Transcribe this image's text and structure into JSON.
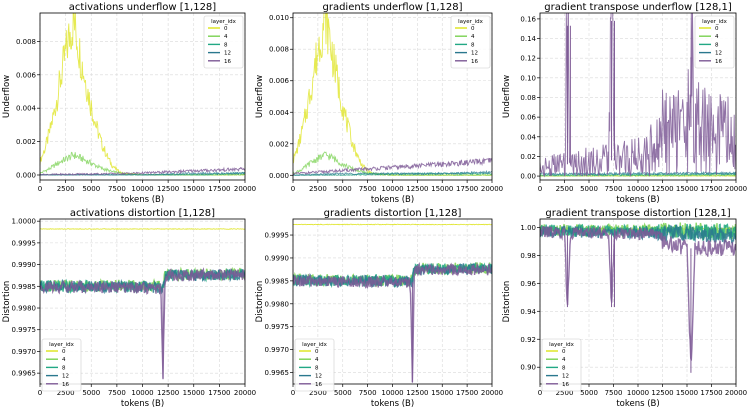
{
  "chart_data": [
    {
      "type": "line",
      "title": "activations underflow [1,128]",
      "xlabel": "tokens (B)",
      "ylabel": "Underflow",
      "xlim": [
        0,
        20000
      ],
      "ylim": [
        -0.0003,
        0.0097
      ],
      "xticks": [
        "0",
        "2500",
        "5000",
        "7500",
        "10000",
        "12500",
        "15000",
        "17500",
        "20000"
      ],
      "xtick_values": [
        0,
        2500,
        5000,
        7500,
        10000,
        12500,
        15000,
        17500,
        20000
      ],
      "yticks": [
        "0.000",
        "0.002",
        "0.004",
        "0.006",
        "0.008"
      ],
      "ytick_values": [
        0,
        0.002,
        0.004,
        0.006,
        0.008
      ],
      "grid": true,
      "legend": {
        "title": "layer_idx",
        "position": "top-right"
      },
      "series": [
        {
          "name": "0",
          "color": "#dde318",
          "x": [
            0,
            500,
            1000,
            1500,
            2000,
            2500,
            3000,
            3300,
            3600,
            4000,
            4500,
            5000,
            5500,
            6000,
            6500,
            7000,
            7500,
            8000,
            10000,
            12500,
            15000,
            17500,
            20000
          ],
          "values": [
            0.0008,
            0.0016,
            0.0027,
            0.0041,
            0.0057,
            0.0073,
            0.0087,
            0.0092,
            0.0083,
            0.0069,
            0.0055,
            0.0041,
            0.0029,
            0.0019,
            0.0012,
            0.0006,
            0.0003,
            0.0001,
            0.0,
            0.0,
            0.0,
            0.0,
            0.0
          ]
        },
        {
          "name": "4",
          "color": "#7ad151",
          "x": [
            0,
            1000,
            2000,
            3000,
            3300,
            4000,
            5000,
            6000,
            7000,
            8000,
            10000,
            15000,
            20000
          ],
          "values": [
            0.0001,
            0.0004,
            0.0008,
            0.0011,
            0.0012,
            0.001,
            0.0007,
            0.0004,
            0.0002,
            0.0001,
            0.0,
            0.0,
            0.0
          ]
        },
        {
          "name": "8",
          "color": "#22a884",
          "x": [
            0,
            5000,
            10000,
            15000,
            20000
          ],
          "values": [
            0.0,
            0.0,
            0.0,
            0.0,
            0.0001
          ]
        },
        {
          "name": "12",
          "color": "#2a788e",
          "x": [
            0,
            5000,
            10000,
            15000,
            20000
          ],
          "values": [
            0.0,
            0.0,
            0.0,
            0.0001,
            0.0001
          ]
        },
        {
          "name": "16",
          "color": "#7e5a96",
          "x": [
            0,
            2500,
            5000,
            7500,
            10000,
            12500,
            15000,
            17500,
            20000
          ],
          "values": [
            2e-05,
            4e-05,
            6e-05,
            8e-05,
            0.00012,
            0.00018,
            0.00025,
            0.0003,
            0.00035
          ]
        }
      ]
    },
    {
      "type": "line",
      "title": "gradients underflow [1,128]",
      "xlabel": "tokens (B)",
      "ylabel": "Underflow",
      "xlim": [
        0,
        20000
      ],
      "ylim": [
        -0.0003,
        0.0103
      ],
      "xticks": [
        "0",
        "2500",
        "5000",
        "7500",
        "10000",
        "12500",
        "15000",
        "17500",
        "20000"
      ],
      "xtick_values": [
        0,
        2500,
        5000,
        7500,
        10000,
        12500,
        15000,
        17500,
        20000
      ],
      "yticks": [
        "0.000",
        "0.002",
        "0.004",
        "0.006",
        "0.008",
        "0.010"
      ],
      "ytick_values": [
        0,
        0.002,
        0.004,
        0.006,
        0.008,
        0.01
      ],
      "grid": true,
      "legend": {
        "title": "layer_idx",
        "position": "top-right"
      },
      "series": [
        {
          "name": "0",
          "color": "#dde318",
          "x": [
            0,
            500,
            1000,
            1500,
            2000,
            2500,
            3000,
            3300,
            3600,
            4000,
            4500,
            5000,
            5500,
            6000,
            6500,
            7000,
            7500,
            8000,
            10000,
            15000,
            20000
          ],
          "values": [
            0.0009,
            0.0018,
            0.003,
            0.0045,
            0.0062,
            0.0079,
            0.0094,
            0.01,
            0.009,
            0.0075,
            0.0059,
            0.0044,
            0.0031,
            0.002,
            0.0012,
            0.0006,
            0.0003,
            0.0001,
            0.0,
            0.0,
            0.0
          ]
        },
        {
          "name": "4",
          "color": "#7ad151",
          "x": [
            0,
            1000,
            2000,
            3000,
            3300,
            4000,
            5000,
            6000,
            7000,
            8000,
            10000,
            15000,
            20000
          ],
          "values": [
            0.0001,
            0.0004,
            0.0009,
            0.0012,
            0.0013,
            0.0011,
            0.0007,
            0.0004,
            0.0002,
            0.0001,
            0.0,
            0.0,
            0.0
          ]
        },
        {
          "name": "8",
          "color": "#22a884",
          "x": [
            0,
            5000,
            10000,
            15000,
            20000
          ],
          "values": [
            0.0,
            0.0,
            0.0001,
            0.0001,
            0.0001
          ]
        },
        {
          "name": "12",
          "color": "#2a788e",
          "x": [
            0,
            5000,
            10000,
            15000,
            20000
          ],
          "values": [
            0.0,
            0.0001,
            0.0001,
            0.0001,
            0.0002
          ]
        },
        {
          "name": "16",
          "color": "#7e5a96",
          "x": [
            0,
            2500,
            5000,
            7500,
            10000,
            12500,
            15000,
            17500,
            20000
          ],
          "values": [
            0.0001,
            0.0002,
            0.0003,
            0.0004,
            0.0005,
            0.0006,
            0.0007,
            0.0008,
            0.0009
          ]
        }
      ]
    },
    {
      "type": "line",
      "title": "gradient transpose underflow [128,1]",
      "xlabel": "tokens (B)",
      "ylabel": "Underflow",
      "xlim": [
        0,
        20000
      ],
      "ylim": [
        -0.004,
        0.166
      ],
      "xticks": [
        "0",
        "2500",
        "5000",
        "7500",
        "10000",
        "12500",
        "15000",
        "17500",
        "20000"
      ],
      "xtick_values": [
        0,
        2500,
        5000,
        7500,
        10000,
        12500,
        15000,
        17500,
        20000
      ],
      "yticks": [
        "0.00",
        "0.02",
        "0.04",
        "0.06",
        "0.08",
        "0.10",
        "0.12",
        "0.14",
        "0.16"
      ],
      "ytick_values": [
        0,
        0.02,
        0.04,
        0.06,
        0.08,
        0.1,
        0.12,
        0.14,
        0.16
      ],
      "grid": true,
      "legend": {
        "title": "layer_idx",
        "position": "top-right"
      },
      "series": [
        {
          "name": "0",
          "color": "#dde318",
          "x": [
            0,
            20000
          ],
          "values": [
            0.0,
            0.0
          ]
        },
        {
          "name": "4",
          "color": "#7ad151",
          "x": [
            0,
            20000
          ],
          "values": [
            0.0,
            0.001
          ]
        },
        {
          "name": "8",
          "color": "#22a884",
          "x": [
            0,
            20000
          ],
          "values": [
            0.001,
            0.002
          ]
        },
        {
          "name": "12",
          "color": "#2a788e",
          "x": [
            0,
            20000
          ],
          "values": [
            0.002,
            0.003
          ]
        },
        {
          "name": "16",
          "color": "#7e5a96",
          "x": [
            0,
            2500,
            2800,
            3100,
            5000,
            7000,
            7300,
            7600,
            10000,
            12000,
            12500,
            15000,
            15400,
            15800,
            17500,
            20000
          ],
          "values": [
            0.008,
            0.012,
            0.153,
            0.012,
            0.014,
            0.016,
            0.158,
            0.016,
            0.02,
            0.03,
            0.045,
            0.05,
            0.121,
            0.05,
            0.045,
            0.04
          ]
        }
      ]
    },
    {
      "type": "line",
      "title": "activations distortion [1,128]",
      "xlabel": "tokens (B)",
      "ylabel": "Distortion",
      "xlim": [
        0,
        20000
      ],
      "ylim": [
        0.99625,
        1.00005
      ],
      "xticks": [
        "0",
        "2500",
        "5000",
        "7500",
        "10000",
        "12500",
        "15000",
        "17500",
        "20000"
      ],
      "xtick_values": [
        0,
        2500,
        5000,
        7500,
        10000,
        12500,
        15000,
        17500,
        20000
      ],
      "yticks": [
        "0.9965",
        "0.9970",
        "0.9975",
        "0.9980",
        "0.9985",
        "0.9990",
        "0.9995",
        "1.0000"
      ],
      "ytick_values": [
        0.9965,
        0.997,
        0.9975,
        0.998,
        0.9985,
        0.999,
        0.9995,
        1.0
      ],
      "grid": true,
      "legend": {
        "title": "layer_idx",
        "position": "bottom-left"
      },
      "series": [
        {
          "name": "0",
          "color": "#dde318",
          "x": [
            0,
            20000
          ],
          "values": [
            0.99982,
            0.99982
          ]
        },
        {
          "name": "4",
          "color": "#7ad151",
          "x": [
            0,
            2500,
            5000,
            7500,
            10000,
            12000,
            12200,
            15000,
            17500,
            20000
          ],
          "values": [
            0.99853,
            0.99851,
            0.99852,
            0.99852,
            0.99851,
            0.9985,
            0.99877,
            0.99878,
            0.99879,
            0.99879
          ]
        },
        {
          "name": "8",
          "color": "#22a884",
          "x": [
            0,
            12000,
            12200,
            20000
          ],
          "values": [
            0.99851,
            0.99849,
            0.99876,
            0.99878
          ]
        },
        {
          "name": "12",
          "color": "#2a788e",
          "x": [
            0,
            12000,
            12200,
            20000
          ],
          "values": [
            0.9985,
            0.99848,
            0.99875,
            0.99877
          ]
        },
        {
          "name": "16",
          "color": "#7e5a96",
          "x": [
            0,
            11800,
            12000,
            12200,
            12400,
            20000
          ],
          "values": [
            0.99849,
            0.99846,
            0.99636,
            0.99874,
            0.99875,
            0.99876
          ]
        }
      ]
    },
    {
      "type": "line",
      "title": "gradients distortion [1,128]",
      "xlabel": "tokens (B)",
      "ylabel": "Distortion",
      "xlim": [
        0,
        20000
      ],
      "ylim": [
        0.99625,
        0.99985
      ],
      "xticks": [
        "0",
        "2500",
        "5000",
        "7500",
        "10000",
        "12500",
        "15000",
        "17500",
        "20000"
      ],
      "xtick_values": [
        0,
        2500,
        5000,
        7500,
        10000,
        12500,
        15000,
        17500,
        20000
      ],
      "yticks": [
        "0.9965",
        "0.9970",
        "0.9975",
        "0.9980",
        "0.9985",
        "0.9990",
        "0.9995"
      ],
      "ytick_values": [
        0.9965,
        0.997,
        0.9975,
        0.998,
        0.9985,
        0.999,
        0.9995
      ],
      "grid": true,
      "legend": {
        "title": "layer_idx",
        "position": "bottom-left"
      },
      "series": [
        {
          "name": "0",
          "color": "#dde318",
          "x": [
            0,
            20000
          ],
          "values": [
            0.99973,
            0.99973
          ]
        },
        {
          "name": "4",
          "color": "#7ad151",
          "x": [
            0,
            12000,
            12200,
            20000
          ],
          "values": [
            0.99853,
            0.99851,
            0.99877,
            0.99878
          ]
        },
        {
          "name": "8",
          "color": "#22a884",
          "x": [
            0,
            12000,
            12200,
            20000
          ],
          "values": [
            0.99852,
            0.9985,
            0.99876,
            0.99877
          ]
        },
        {
          "name": "12",
          "color": "#2a788e",
          "x": [
            0,
            12000,
            12200,
            20000
          ],
          "values": [
            0.99851,
            0.99849,
            0.99875,
            0.99876
          ]
        },
        {
          "name": "16",
          "color": "#7e5a96",
          "x": [
            0,
            11800,
            12000,
            12200,
            12400,
            20000
          ],
          "values": [
            0.9985,
            0.99847,
            0.99628,
            0.99873,
            0.99874,
            0.99875
          ]
        }
      ]
    },
    {
      "type": "line",
      "title": "gradient transpose distortion [128,1]",
      "xlabel": "tokens (B)",
      "ylabel": "Distortion",
      "xlim": [
        0,
        20000
      ],
      "ylim": [
        0.888,
        1.006
      ],
      "xticks": [
        "0",
        "2500",
        "5000",
        "7500",
        "10000",
        "12500",
        "15000",
        "17500",
        "20000"
      ],
      "xtick_values": [
        0,
        2500,
        5000,
        7500,
        10000,
        12500,
        15000,
        17500,
        20000
      ],
      "yticks": [
        "0.90",
        "0.92",
        "0.94",
        "0.96",
        "0.98",
        "1.00"
      ],
      "ytick_values": [
        0.9,
        0.92,
        0.94,
        0.96,
        0.98,
        1.0
      ],
      "grid": true,
      "legend": {
        "title": "layer_idx",
        "position": "bottom-left"
      },
      "series": [
        {
          "name": "0",
          "color": "#dde318",
          "x": [
            0,
            20000
          ],
          "values": [
            0.999,
            0.999
          ]
        },
        {
          "name": "4",
          "color": "#7ad151",
          "x": [
            0,
            12000,
            20000
          ],
          "values": [
            0.998,
            0.998,
            0.997
          ]
        },
        {
          "name": "8",
          "color": "#22a884",
          "x": [
            0,
            12000,
            20000
          ],
          "values": [
            0.998,
            0.997,
            0.996
          ]
        },
        {
          "name": "12",
          "color": "#2a788e",
          "x": [
            0,
            12000,
            20000
          ],
          "values": [
            0.997,
            0.996,
            0.994
          ]
        },
        {
          "name": "16",
          "color": "#7e5a96",
          "x": [
            0,
            2500,
            2800,
            3100,
            7000,
            7300,
            7600,
            12000,
            12400,
            15000,
            15400,
            15800,
            20000
          ],
          "values": [
            0.997,
            0.996,
            0.943,
            0.996,
            0.996,
            0.943,
            0.996,
            0.995,
            0.99,
            0.985,
            0.896,
            0.985,
            0.985
          ]
        }
      ]
    }
  ]
}
